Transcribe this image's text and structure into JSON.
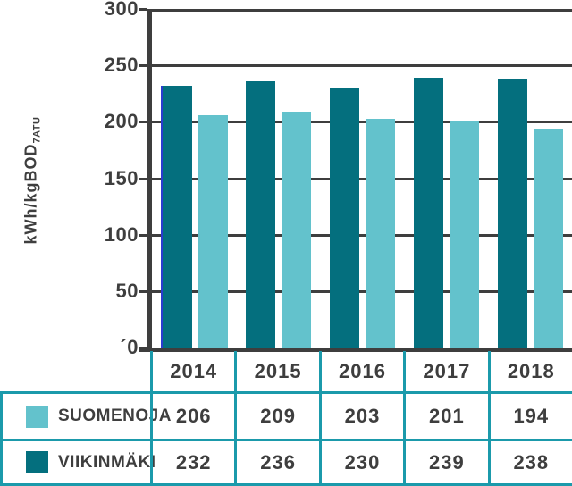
{
  "colors": {
    "viikinmaki_dark_teal": "#046F7E",
    "suomenoja_light_teal": "#63C2CC",
    "table_border_teal": "#1B9AAB",
    "axis_text_gray": "#3E3E3E",
    "artifact_blue_line": "#2B3BD0"
  },
  "y_axis": {
    "label_main": "kWh/kgBOD",
    "label_sub": "7ATU",
    "ticks": [
      {
        "label": "300",
        "value": 300
      },
      {
        "label": "250",
        "value": 250
      },
      {
        "label": "200",
        "value": 200
      },
      {
        "label": "150",
        "value": 150
      },
      {
        "label": "100",
        "value": 100
      },
      {
        "label": "50",
        "value": 50
      },
      {
        "label": "´0",
        "value": 0
      }
    ]
  },
  "chart_data": {
    "type": "bar",
    "title": "",
    "xlabel": "",
    "ylabel": "kWh/kgBOD7ATU",
    "ylim": [
      0,
      300
    ],
    "grid": true,
    "legend_position": "bottom-table",
    "categories": [
      "2014",
      "2015",
      "2016",
      "2017",
      "2018"
    ],
    "series": [
      {
        "name": "VIIKINMÄKI",
        "color": "#046F7E",
        "values": [
          232,
          236,
          230,
          239,
          238
        ]
      },
      {
        "name": "SUOMENOJA",
        "color": "#63C2CC",
        "values": [
          206,
          209,
          203,
          201,
          194
        ]
      }
    ]
  },
  "table": {
    "years": [
      "2014",
      "2015",
      "2016",
      "2017",
      "2018"
    ],
    "rows": [
      {
        "label": "SUOMENOJA",
        "swatch": "suomenoja_light_teal",
        "values": [
          "206",
          "209",
          "203",
          "201",
          "194"
        ]
      },
      {
        "label": "VIIKINMÄKI",
        "swatch": "viikinmaki_dark_teal",
        "values": [
          "232",
          "236",
          "230",
          "239",
          "238"
        ]
      }
    ]
  }
}
